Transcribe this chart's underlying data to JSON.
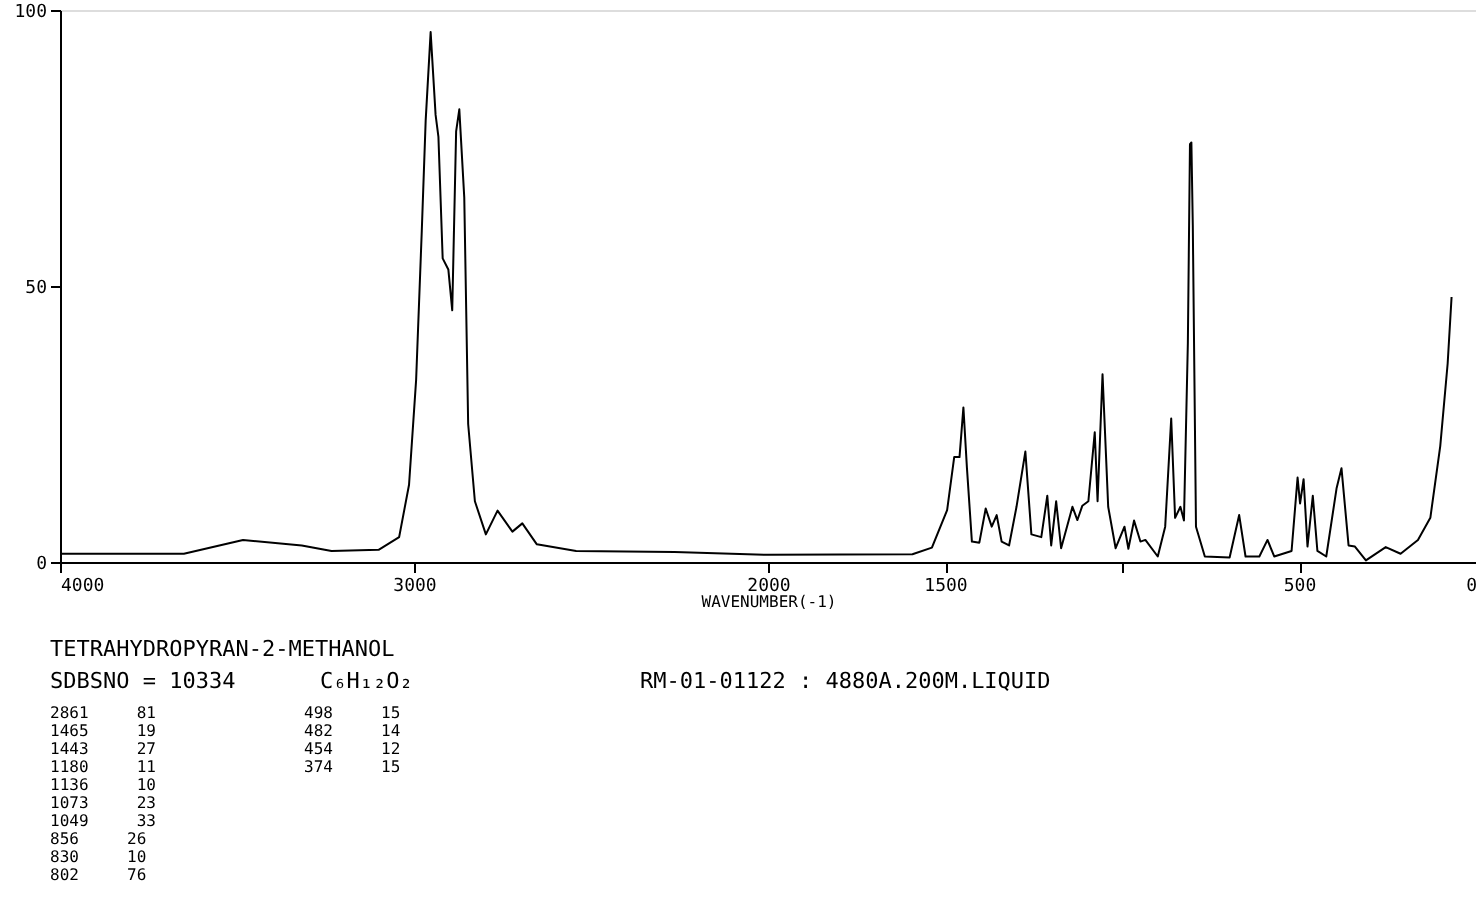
{
  "chart_data": {
    "type": "line",
    "title": "TETRAHYDROPYRAN-2-METHANOL",
    "xlabel": "WAVENUMBER(-1)",
    "xlim": [
      4000,
      0
    ],
    "xticks": [
      4000,
      3000,
      2000,
      1500,
      {
        "value": 1000,
        "label": null
      },
      500,
      0
    ],
    "ylim": [
      0,
      100
    ],
    "yticks": [
      0,
      50,
      100
    ],
    "grid": false,
    "marker": "none",
    "line_style": "solid",
    "series": [
      {
        "color": "#000000",
        "x": [
          4000,
          3650,
          3483,
          3317,
          3233,
          3100,
          3042,
          3014,
          2994,
          2978,
          2967,
          2953,
          2939,
          2931,
          2919,
          2903,
          2892,
          2881,
          2872,
          2858,
          2847,
          2828,
          2797,
          2764,
          2722,
          2694,
          2653,
          2542,
          2264,
          2000,
          1592,
          1537,
          1494,
          1474,
          1459,
          1448,
          1438,
          1424,
          1403,
          1385,
          1368,
          1354,
          1340,
          1319,
          1298,
          1273,
          1256,
          1228,
          1211,
          1200,
          1186,
          1172,
          1140,
          1126,
          1112,
          1095,
          1077,
          1069,
          1055,
          1039,
          1018,
          993,
          982,
          966,
          948,
          934,
          899,
          878,
          861,
          850,
          835,
          825,
          814,
          808,
          804,
          800,
          791,
          766,
          696,
          669,
          651,
          612,
          589,
          570,
          521,
          504,
          497,
          487,
          476,
          461,
          448,
          423,
          394,
          380,
          360,
          342,
          311,
          255,
          213,
          164,
          129,
          101,
          80,
          69
        ],
        "values": [
          1.5,
          1.5,
          4,
          3,
          2,
          2.2,
          4.5,
          14,
          33,
          60,
          80,
          96,
          81,
          77,
          55,
          53,
          45.6,
          78,
          82,
          66,
          25,
          11,
          5,
          9.3,
          5.5,
          7,
          3.2,
          2,
          1.8,
          1.3,
          1.4,
          2.6,
          9.4,
          19,
          19,
          28,
          17,
          3.7,
          3.5,
          9.7,
          6.4,
          8.5,
          3.7,
          3,
          10,
          20,
          5,
          4.5,
          12,
          3,
          11,
          2.5,
          10,
          7.6,
          10.2,
          11,
          23.5,
          11,
          34,
          10,
          2.5,
          6.4,
          2.4,
          7.5,
          3.7,
          4,
          1,
          6.4,
          26,
          8,
          10,
          7.5,
          39.6,
          75.7,
          76,
          61,
          6.4,
          1,
          0.8,
          8.5,
          1,
          1,
          4,
          1,
          2,
          15.3,
          10.6,
          15,
          2.8,
          12,
          2,
          1,
          13.3,
          17,
          3,
          2.8,
          0.3,
          2.7,
          1.5,
          4,
          8,
          21,
          36,
          48
        ]
      }
    ],
    "annotations": [
      "SDBSNO = 10334",
      "C₆H₁₂O₂",
      "RM-01-01122 : 4880A.200M.LIQUID",
      "2861     81",
      "1465     19",
      "1443     27",
      "1180     11",
      "1136     10",
      "1073     23",
      "1049     33",
      " 856     26",
      " 830     10",
      " 802     76",
      "498     15",
      "482     14",
      "454     12",
      "374     15"
    ]
  }
}
